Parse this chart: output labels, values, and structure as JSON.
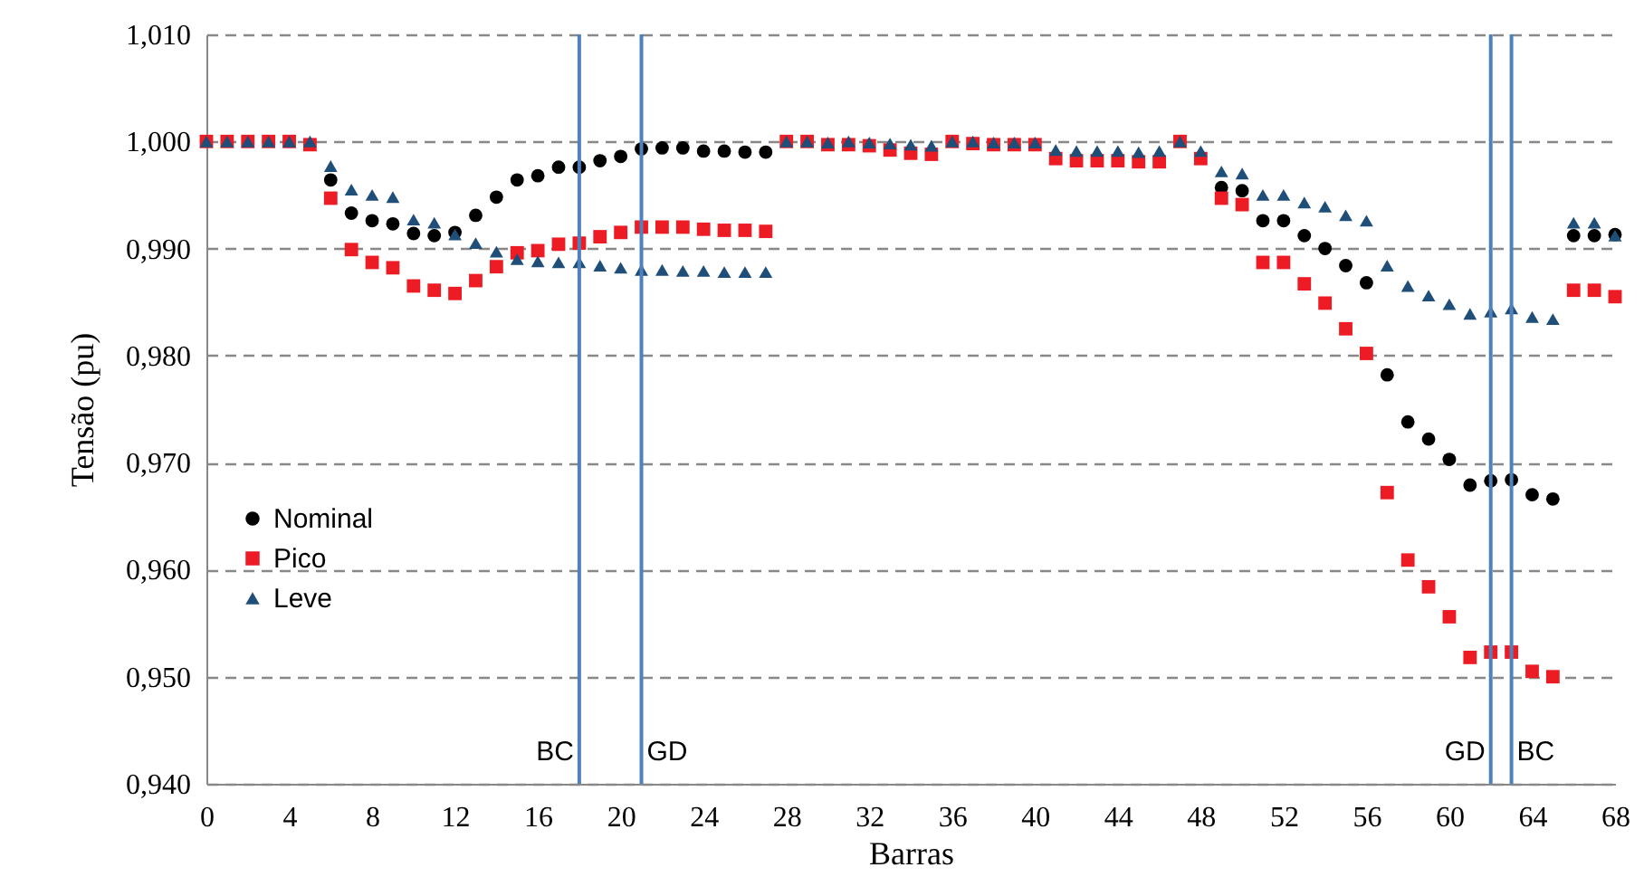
{
  "chart_data": {
    "type": "scatter",
    "xlabel": "Barras",
    "ylabel": "Tensão (pu)",
    "x": [
      0,
      1,
      2,
      3,
      4,
      5,
      6,
      7,
      8,
      9,
      10,
      11,
      12,
      13,
      14,
      15,
      16,
      17,
      18,
      19,
      20,
      21,
      22,
      23,
      24,
      25,
      26,
      27,
      28,
      29,
      30,
      31,
      32,
      33,
      34,
      35,
      36,
      37,
      38,
      39,
      40,
      41,
      42,
      43,
      44,
      45,
      46,
      47,
      48,
      49,
      50,
      51,
      52,
      53,
      54,
      55,
      56,
      57,
      58,
      59,
      60,
      61,
      62,
      63,
      64,
      65,
      66,
      67,
      68
    ],
    "series": [
      {
        "name": "Nominal",
        "color": "#000000",
        "marker": "circle",
        "values": [
          null,
          null,
          null,
          null,
          null,
          null,
          0.9964,
          0.9933,
          0.9926,
          0.9923,
          0.9914,
          0.9912,
          0.9915,
          0.9931,
          0.9948,
          0.9964,
          0.9968,
          0.9976,
          0.9976,
          0.9982,
          0.9986,
          0.9993,
          0.9994,
          0.9994,
          0.9991,
          0.9991,
          0.999,
          0.999,
          null,
          null,
          null,
          null,
          null,
          null,
          null,
          null,
          null,
          null,
          null,
          null,
          null,
          null,
          null,
          null,
          null,
          null,
          null,
          null,
          null,
          0.9957,
          0.9954,
          0.9926,
          0.9926,
          0.9912,
          0.99,
          0.9884,
          0.9868,
          0.9782,
          0.9738,
          0.9722,
          0.9703,
          0.9679,
          0.9683,
          0.9684,
          0.967,
          0.9666,
          0.9912,
          0.9912,
          0.9913
        ]
      },
      {
        "name": "Pico",
        "color": "#ed1c24",
        "marker": "square",
        "values": [
          1.0,
          1.0,
          1.0,
          1.0,
          1.0,
          0.9997,
          0.9947,
          0.9899,
          0.9887,
          0.9882,
          0.9865,
          0.9861,
          0.9858,
          0.987,
          0.9883,
          0.9896,
          0.9898,
          0.9904,
          0.9905,
          0.9911,
          0.9915,
          0.992,
          0.992,
          0.992,
          0.9918,
          0.9917,
          0.9917,
          0.9916,
          1.0,
          1.0,
          0.9997,
          0.9997,
          0.9996,
          0.9992,
          0.9989,
          0.9988,
          1.0,
          0.9998,
          0.9997,
          0.9997,
          0.9997,
          0.9984,
          0.9982,
          0.9982,
          0.9982,
          0.9981,
          0.9981,
          1.0,
          0.9984,
          0.9947,
          0.9941,
          0.9887,
          0.9887,
          0.9867,
          0.9849,
          0.9825,
          0.9802,
          0.9672,
          0.9609,
          0.9584,
          0.9556,
          0.9518,
          0.9523,
          0.9523,
          0.9505,
          0.95,
          0.9861,
          0.9861,
          0.9855
        ]
      },
      {
        "name": "Leve",
        "color": "#1f4e79",
        "marker": "triangle",
        "values": [
          1.0,
          1.0,
          1.0,
          1.0,
          1.0,
          1.0,
          0.9977,
          0.9955,
          0.995,
          0.9948,
          0.9927,
          0.9924,
          0.9913,
          0.9905,
          0.9897,
          0.989,
          0.9888,
          0.9887,
          0.9887,
          0.9884,
          0.9882,
          0.988,
          0.988,
          0.9879,
          0.9879,
          0.9878,
          0.9878,
          0.9878,
          1.0,
          1.0,
          0.9999,
          1.0,
          0.9999,
          0.9998,
          0.9997,
          0.9996,
          1.0,
          1.0,
          0.9999,
          0.9999,
          0.9999,
          0.9992,
          0.9991,
          0.9991,
          0.9991,
          0.999,
          0.9991,
          1.0,
          0.9991,
          0.9972,
          0.997,
          0.995,
          0.995,
          0.9943,
          0.9939,
          0.9931,
          0.9926,
          0.9884,
          0.9865,
          0.9856,
          0.9848,
          0.9839,
          0.9841,
          0.9844,
          0.9836,
          0.9834,
          0.9924,
          0.9924,
          0.9912
        ]
      }
    ],
    "xlim": [
      0,
      68
    ],
    "xticks": [
      0,
      4,
      8,
      12,
      16,
      20,
      24,
      28,
      32,
      36,
      40,
      44,
      48,
      52,
      56,
      60,
      64,
      68
    ],
    "ylim": [
      0.94,
      1.01
    ],
    "yticks": [
      {
        "value": 0.94,
        "label": "0,940"
      },
      {
        "value": 0.95,
        "label": "0,950"
      },
      {
        "value": 0.96,
        "label": "0,960"
      },
      {
        "value": 0.97,
        "label": "0,970"
      },
      {
        "value": 0.98,
        "label": "0,980"
      },
      {
        "value": 0.99,
        "label": "0,990"
      },
      {
        "value": 1.0,
        "label": "1,000"
      },
      {
        "value": 1.01,
        "label": "1,010"
      }
    ],
    "grid": "y",
    "legend": "left",
    "ref_lines": [
      {
        "axis": "x",
        "value": 18,
        "label": "BC",
        "color": "#4f81bd"
      },
      {
        "axis": "x",
        "value": 21,
        "label": "GD",
        "color": "#4f81bd"
      },
      {
        "axis": "x",
        "value": 62,
        "label": "GD",
        "color": "#4f81bd"
      },
      {
        "axis": "x",
        "value": 63,
        "label": "BC",
        "color": "#4f81bd"
      }
    ]
  }
}
